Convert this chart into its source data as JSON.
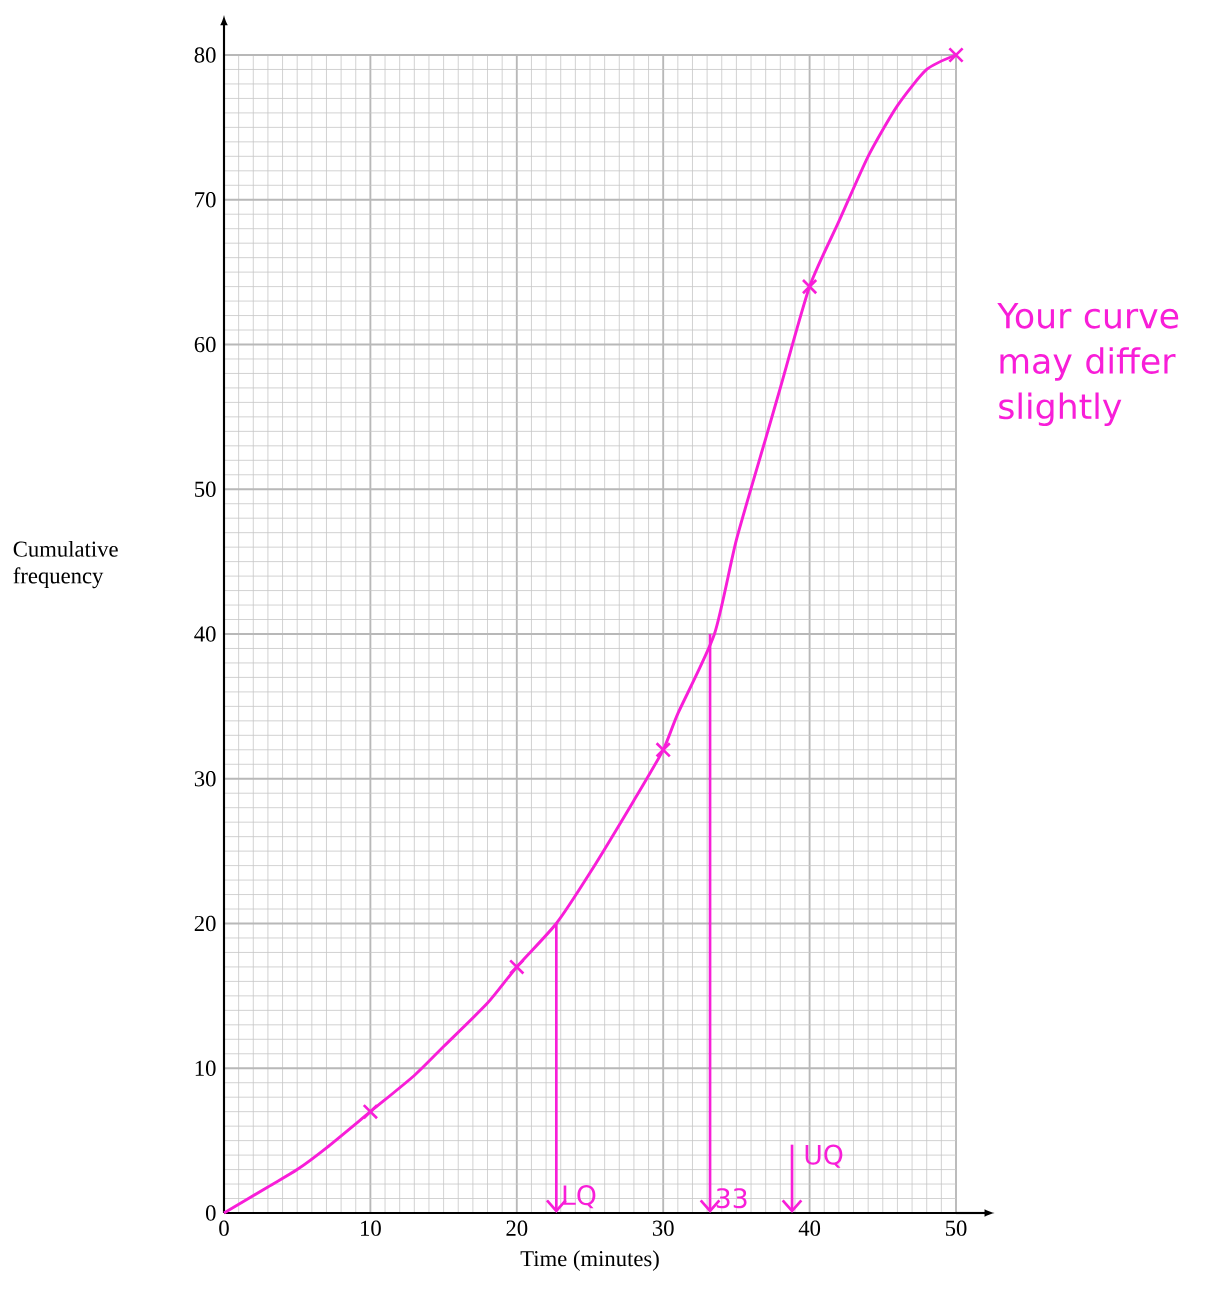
{
  "chart_data": {
    "type": "line",
    "xlabel": "Time (minutes)",
    "ylabel": "Cumulative frequency",
    "xlim": [
      0,
      50
    ],
    "ylim": [
      0,
      80
    ],
    "xticks": [
      0,
      10,
      20,
      30,
      40,
      50
    ],
    "yticks": [
      0,
      10,
      20,
      30,
      40,
      50,
      60,
      70,
      80
    ],
    "grid": true,
    "series": [
      {
        "color": "#f81ed8",
        "marker": "none",
        "line_style": "solid",
        "x": [
          0,
          3,
          5,
          7,
          10,
          13,
          15,
          18,
          20,
          22.7,
          25,
          28,
          30,
          31,
          33.5,
          35,
          37,
          38,
          40,
          42,
          44,
          46,
          48,
          50
        ],
        "values": [
          0,
          1.8,
          3,
          4.5,
          7,
          9.5,
          11.5,
          14.5,
          17,
          20,
          23.5,
          28.5,
          32,
          34.5,
          40,
          46.5,
          53.5,
          57,
          64,
          68.5,
          73,
          76.5,
          79,
          80
        ]
      },
      {
        "type": "scatter",
        "color": "#f81ed8",
        "marker": "cross",
        "x": [
          10,
          20,
          30,
          40,
          50
        ],
        "values": [
          7,
          17,
          32,
          64,
          80
        ]
      }
    ],
    "annotations": [
      {
        "text": "LQ",
        "x": 22.7,
        "y": 20
      },
      {
        "text": "33",
        "x": 33.2,
        "y": 40
      },
      "UQ",
      "Your curve may differ slightly"
    ]
  }
}
